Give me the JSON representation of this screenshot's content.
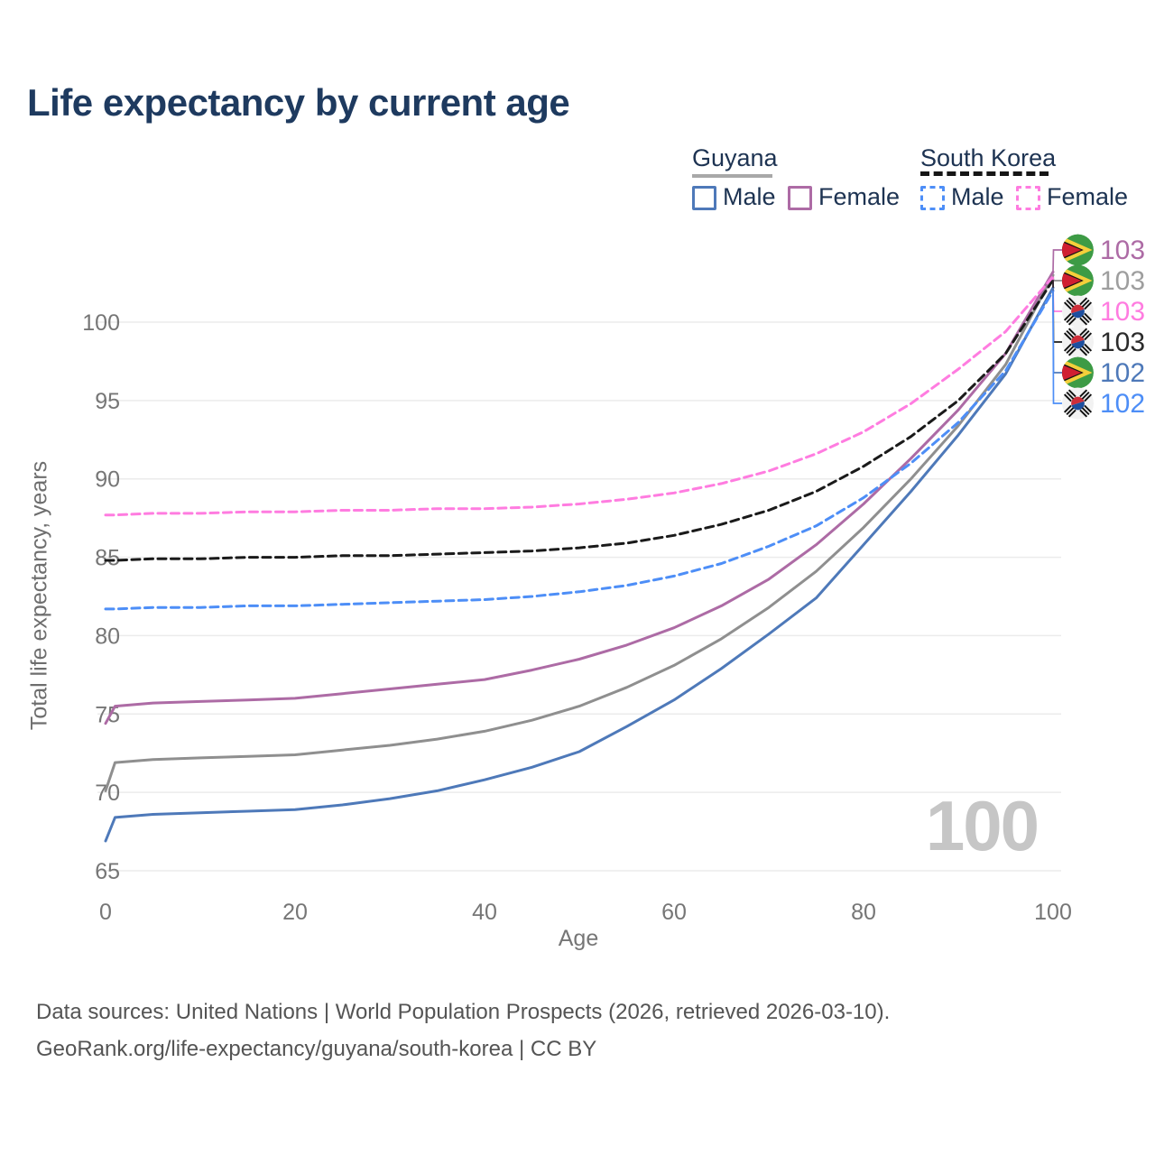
{
  "title": "Life expectancy by current age",
  "legend": {
    "guyana": {
      "label": "Guyana",
      "male": "Male",
      "female": "Female"
    },
    "south_korea": {
      "label": "South Korea",
      "male": "Male",
      "female": "Female"
    }
  },
  "axis": {
    "x_label": "Age",
    "y_label": "Total life expectancy, years"
  },
  "watermark": "100",
  "footer": {
    "line1": "Data sources: United Nations | World Population Prospects (2026, retrieved 2026-03-10).",
    "line2": "GeoRank.org/life-expectancy/guyana/south-korea | CC BY"
  },
  "colors": {
    "title_text": "#1e3a5f",
    "legend_text": "#1d3352",
    "guyana_male": "#4e79b9",
    "guyana_female": "#ad6ba5",
    "guyana_total": "#8f8f8f",
    "south_korea_male": "#4d8ef7",
    "south_korea_female": "#ff7ce0",
    "south_korea_total": "#1a1a1a",
    "gridline": "#ebebeb",
    "tick_text": "#767676",
    "watermark_text": "#c6c6c6"
  },
  "chart_data": {
    "type": "line",
    "title": "Life expectancy by current age",
    "xlabel": "Age",
    "ylabel": "Total life expectancy, years",
    "x_ticks": [
      0,
      20,
      40,
      60,
      80,
      100
    ],
    "y_ticks": [
      65,
      70,
      75,
      80,
      85,
      90,
      95,
      100
    ],
    "xlim": [
      0,
      100
    ],
    "ylim": [
      63.5,
      104.5
    ],
    "grid": "horizontal-only",
    "legend_position": "top-right",
    "ages": [
      0,
      1,
      5,
      10,
      15,
      20,
      25,
      30,
      35,
      40,
      45,
      50,
      55,
      60,
      65,
      70,
      75,
      80,
      85,
      90,
      95,
      100
    ],
    "series": [
      {
        "name": "Guyana Total",
        "country": "Guyana",
        "group": "Total",
        "color": "#8f8f8f",
        "dashed": false,
        "values": [
          70.1,
          71.9,
          72.1,
          72.2,
          72.3,
          72.4,
          72.7,
          73.0,
          73.4,
          73.9,
          74.6,
          75.5,
          76.7,
          78.1,
          79.8,
          81.8,
          84.1,
          86.9,
          90.0,
          93.4,
          97.3,
          103.0
        ]
      },
      {
        "name": "Guyana Male",
        "country": "Guyana",
        "group": "Male",
        "color": "#4e79b9",
        "dashed": false,
        "values": [
          66.9,
          68.4,
          68.6,
          68.7,
          68.8,
          68.9,
          69.2,
          69.6,
          70.1,
          70.8,
          71.6,
          72.6,
          74.2,
          75.9,
          77.9,
          80.1,
          82.4,
          85.8,
          89.2,
          92.8,
          96.7,
          102.2
        ]
      },
      {
        "name": "Guyana Female",
        "country": "Guyana",
        "group": "Female",
        "color": "#ad6ba5",
        "dashed": false,
        "values": [
          74.4,
          75.5,
          75.7,
          75.8,
          75.9,
          76.0,
          76.3,
          76.6,
          76.9,
          77.2,
          77.8,
          78.5,
          79.4,
          80.5,
          81.9,
          83.6,
          85.8,
          88.4,
          91.3,
          94.4,
          98.0,
          103.2
        ]
      },
      {
        "name": "South Korea Male",
        "country": "South Korea",
        "group": "Male",
        "color": "#4d8ef7",
        "dashed": true,
        "values": [
          81.7,
          81.7,
          81.8,
          81.8,
          81.9,
          81.9,
          82.0,
          82.1,
          82.2,
          82.3,
          82.5,
          82.8,
          83.2,
          83.8,
          84.6,
          85.7,
          87.0,
          88.8,
          91.0,
          93.6,
          96.9,
          102.0
        ]
      },
      {
        "name": "South Korea Total",
        "country": "South Korea",
        "group": "Total",
        "color": "#1a1a1a",
        "dashed": true,
        "values": [
          84.8,
          84.8,
          84.9,
          84.9,
          85.0,
          85.0,
          85.1,
          85.1,
          85.2,
          85.3,
          85.4,
          85.6,
          85.9,
          86.4,
          87.1,
          88.0,
          89.2,
          90.8,
          92.7,
          95.0,
          98.0,
          102.7
        ]
      },
      {
        "name": "South Korea Female",
        "country": "South Korea",
        "group": "Female",
        "color": "#ff7ce0",
        "dashed": true,
        "values": [
          87.7,
          87.7,
          87.8,
          87.8,
          87.9,
          87.9,
          88.0,
          88.0,
          88.1,
          88.1,
          88.2,
          88.4,
          88.7,
          89.1,
          89.7,
          90.5,
          91.6,
          93.0,
          94.8,
          97.0,
          99.4,
          102.9
        ]
      }
    ],
    "end_labels": [
      {
        "series": "Guyana Female",
        "flag": "guyana",
        "value": "103",
        "color": "#ad6ba5"
      },
      {
        "series": "Guyana Total",
        "flag": "guyana",
        "value": "103",
        "color": "#9e9e9e"
      },
      {
        "series": "South Korea Female",
        "flag": "south-korea",
        "value": "103",
        "color": "#ff7ce0"
      },
      {
        "series": "South Korea Total",
        "flag": "south-korea",
        "value": "103",
        "color": "#2b2b2b"
      },
      {
        "series": "Guyana Male",
        "flag": "guyana",
        "value": "102",
        "color": "#4e79b9"
      },
      {
        "series": "South Korea Male",
        "flag": "south-korea",
        "value": "102",
        "color": "#4d8ef7"
      }
    ]
  }
}
